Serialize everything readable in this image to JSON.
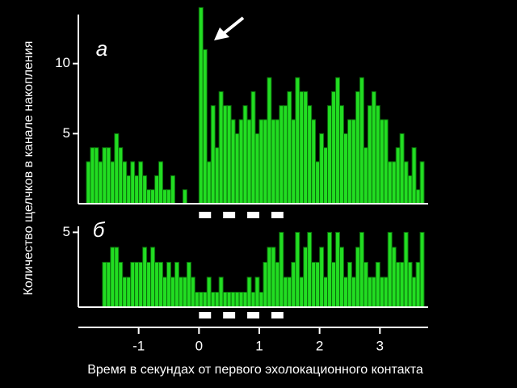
{
  "chart_data": [
    {
      "type": "histogram",
      "panel_label": "а",
      "y_label": "Количество щелчков в канале накопления",
      "color": "#22dd22",
      "edge_color": "#0b6b0b",
      "xlim": [
        -2,
        3.8
      ],
      "ylim": [
        0,
        13.5
      ],
      "yticks": [
        5,
        10
      ],
      "bins": [
        -1.867,
        -1.8,
        -1.733,
        -1.667,
        -1.6,
        -1.533,
        -1.467,
        -1.4,
        -1.333,
        -1.267,
        -1.2,
        -1.133,
        -1.067,
        -1,
        -0.933,
        -0.867,
        -0.8,
        -0.733,
        -0.667,
        -0.6,
        -0.533,
        -0.467,
        -0.4,
        -0.333,
        -0.267,
        -0.2,
        -0.133,
        -0.067,
        0,
        0.067,
        0.133,
        0.2,
        0.267,
        0.333,
        0.4,
        0.467,
        0.533,
        0.6,
        0.667,
        0.733,
        0.8,
        0.867,
        0.933,
        1,
        1.067,
        1.133,
        1.2,
        1.267,
        1.333,
        1.4,
        1.467,
        1.533,
        1.6,
        1.667,
        1.733,
        1.8,
        1.867,
        1.933,
        2,
        2.067,
        2.133,
        2.2,
        2.267,
        2.333,
        2.4,
        2.467,
        2.533,
        2.6,
        2.667,
        2.733,
        2.8,
        2.867,
        2.933,
        3,
        3.067,
        3.133,
        3.2,
        3.267,
        3.333,
        3.4,
        3.467,
        3.533,
        3.6,
        3.667,
        3.733
      ],
      "values": [
        3,
        4,
        4,
        3,
        4,
        4,
        3,
        5,
        4,
        3,
        2,
        3,
        2,
        3,
        2,
        1,
        1,
        2,
        3,
        1,
        1,
        2,
        0,
        0,
        1,
        0,
        0,
        0,
        14,
        11,
        3,
        7,
        4,
        8,
        7,
        7,
        6,
        5,
        6,
        7,
        6,
        8,
        5,
        6,
        6,
        9,
        6,
        6,
        7,
        7,
        8,
        6,
        9,
        8,
        8,
        7,
        6,
        3,
        5,
        4,
        7,
        8,
        9,
        7,
        5,
        6,
        6,
        8,
        9,
        4,
        7,
        8,
        7,
        6,
        6,
        3,
        3,
        4,
        5,
        3,
        2,
        4,
        1,
        3
      ],
      "markers": [
        [
          0,
          0.2
        ],
        [
          0.4,
          0.6
        ],
        [
          0.8,
          1.0
        ],
        [
          1.2,
          1.4
        ]
      ]
    },
    {
      "type": "histogram",
      "panel_label": "б",
      "x_label": "Время в секундах от первого эхолокационного контакта",
      "color": "#22dd22",
      "edge_color": "#0b6b0b",
      "xlim": [
        -2,
        3.8
      ],
      "xticks": [
        -1,
        0,
        1,
        2,
        3
      ],
      "ylim": [
        0,
        5.4
      ],
      "yticks": [
        5
      ],
      "bins": [
        -1.867,
        -1.8,
        -1.733,
        -1.667,
        -1.6,
        -1.533,
        -1.467,
        -1.4,
        -1.333,
        -1.267,
        -1.2,
        -1.133,
        -1.067,
        -1,
        -0.933,
        -0.867,
        -0.8,
        -0.733,
        -0.667,
        -0.6,
        -0.533,
        -0.467,
        -0.4,
        -0.333,
        -0.267,
        -0.2,
        -0.133,
        -0.067,
        0,
        0.067,
        0.133,
        0.2,
        0.267,
        0.333,
        0.4,
        0.467,
        0.533,
        0.6,
        0.667,
        0.733,
        0.8,
        0.867,
        0.933,
        1,
        1.067,
        1.133,
        1.2,
        1.267,
        1.333,
        1.4,
        1.467,
        1.533,
        1.6,
        1.667,
        1.733,
        1.8,
        1.867,
        1.933,
        2,
        2.067,
        2.133,
        2.2,
        2.267,
        2.333,
        2.4,
        2.467,
        2.533,
        2.6,
        2.667,
        2.733,
        2.8,
        2.867,
        2.933,
        3,
        3.067,
        3.133,
        3.2,
        3.267,
        3.333,
        3.4,
        3.467,
        3.533,
        3.6,
        3.667,
        3.733
      ],
      "values": [
        0,
        0,
        0,
        0,
        3,
        3,
        4,
        4,
        3,
        2,
        2,
        3,
        3,
        3,
        4,
        3,
        4,
        3,
        3,
        2,
        3,
        2,
        3,
        2,
        2,
        3,
        2,
        1,
        1,
        1,
        2,
        1,
        1,
        2,
        1,
        1,
        1,
        1,
        1,
        1,
        2,
        1,
        2,
        1,
        3,
        4,
        4,
        3,
        5,
        2,
        2,
        3,
        5,
        2,
        4,
        5,
        3,
        3,
        4,
        2,
        5,
        3,
        5,
        4,
        2,
        3,
        2,
        4,
        5,
        3,
        2,
        2,
        3,
        2,
        2,
        5,
        4,
        3,
        3,
        5,
        3,
        2,
        3,
        5
      ],
      "markers": [
        [
          0,
          0.2
        ],
        [
          0.4,
          0.6
        ],
        [
          0.8,
          1.0
        ],
        [
          1.2,
          1.4
        ]
      ]
    }
  ]
}
